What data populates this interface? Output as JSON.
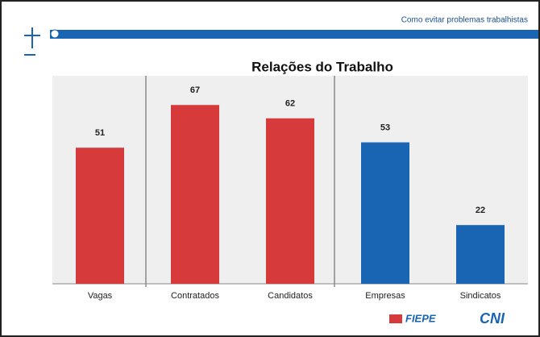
{
  "header": {
    "subtitle": "Como evitar problemas trabalhistas"
  },
  "chart_data": {
    "type": "bar",
    "title": "Relações do Trabalho",
    "categories": [
      "Vagas",
      "Contratados",
      "Candidatos",
      "Empresas",
      "Sindicatos"
    ],
    "values": [
      51,
      67,
      62,
      53,
      22
    ],
    "colors": [
      "#d63a3a",
      "#d63a3a",
      "#d63a3a",
      "#1a64b4",
      "#1a64b4"
    ]
  },
  "footer": {
    "logos": [
      "FIEPE",
      "CNI"
    ]
  }
}
